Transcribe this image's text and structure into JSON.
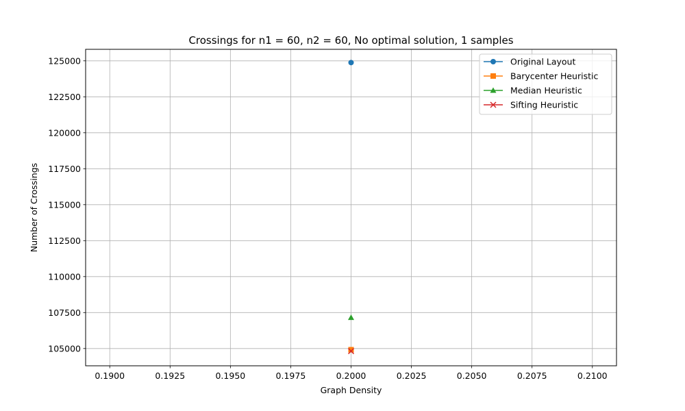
{
  "chart_data": {
    "type": "line",
    "title": "Crossings for n1 = 60, n2 = 60, No optimal solution, 1 samples",
    "xlabel": "Graph Density",
    "ylabel": "Number of Crossings",
    "xlim": [
      0.189,
      0.211
    ],
    "ylim": [
      103800,
      125800
    ],
    "x_ticks": [
      "0.1900",
      "0.1925",
      "0.1950",
      "0.1975",
      "0.2000",
      "0.2025",
      "0.2050",
      "0.2075",
      "0.2100"
    ],
    "x_tick_values": [
      0.19,
      0.1925,
      0.195,
      0.1975,
      0.2,
      0.2025,
      0.205,
      0.2075,
      0.21
    ],
    "y_ticks": [
      "105000",
      "107500",
      "110000",
      "112500",
      "115000",
      "117500",
      "120000",
      "122500",
      "125000"
    ],
    "y_tick_values": [
      105000,
      107500,
      110000,
      112500,
      115000,
      117500,
      120000,
      122500,
      125000
    ],
    "grid": true,
    "legend_position": "top-right",
    "series": [
      {
        "name": "Original Layout",
        "x": [
          0.2
        ],
        "values": [
          124880
        ],
        "color": "#1f77b4",
        "marker": "circle"
      },
      {
        "name": "Barycenter Heuristic",
        "x": [
          0.2
        ],
        "values": [
          104920
        ],
        "color": "#ff7f0e",
        "marker": "square"
      },
      {
        "name": "Median Heuristic",
        "x": [
          0.2
        ],
        "values": [
          107150
        ],
        "color": "#2ca02c",
        "marker": "triangle"
      },
      {
        "name": "Sifting Heuristic",
        "x": [
          0.2
        ],
        "values": [
          104820
        ],
        "color": "#d62728",
        "marker": "x"
      }
    ]
  }
}
